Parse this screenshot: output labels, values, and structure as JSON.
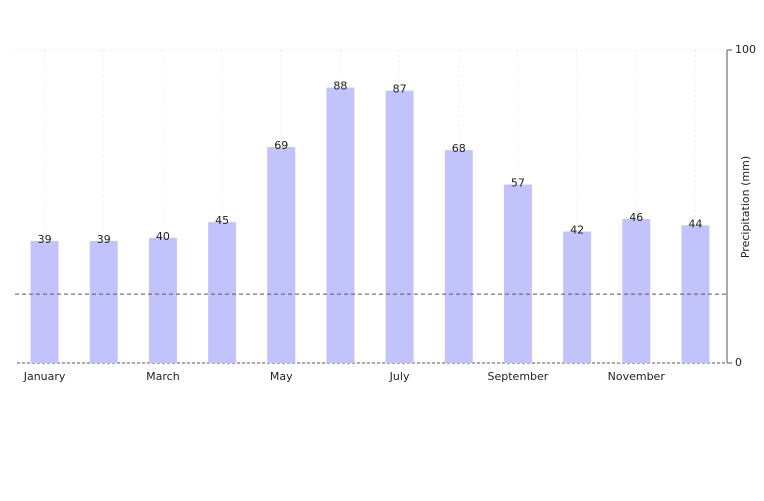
{
  "chart_data": {
    "type": "bar",
    "y_label": "Precipitation (mm)",
    "categories": [
      "January",
      null,
      "March",
      null,
      "May",
      null,
      "July",
      null,
      "September",
      null,
      "November",
      null
    ],
    "values": [
      39,
      39,
      40,
      45,
      69,
      88,
      87,
      68,
      57,
      42,
      46,
      44
    ],
    "color": "#c3c3fc",
    "ylim": [
      0,
      100
    ],
    "yticks": [
      0,
      100
    ],
    "y_axis_side": "right",
    "reference_line": 22,
    "grid": true
  }
}
